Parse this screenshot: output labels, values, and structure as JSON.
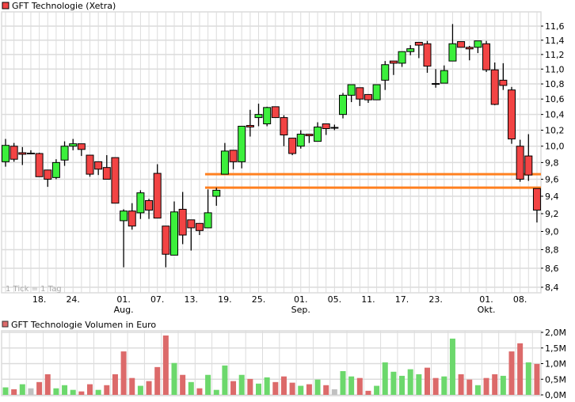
{
  "chart_data": [
    {
      "type": "candlestick",
      "title": "GFT Technologie (Xetra)",
      "note": "1 Tick = 1 Tag",
      "y_scale": "log",
      "ylim": [
        8.4,
        11.6
      ],
      "grid": true,
      "legend_placement": "top-left",
      "y_tick_labels": [
        "8,4",
        "8,6",
        "8,8",
        "9,0",
        "9,2",
        "9,4",
        "9,6",
        "9,8",
        "10,0",
        "10,2",
        "10,4",
        "10,6",
        "10,8",
        "11,0",
        "11,2",
        "11,4",
        "11,6"
      ],
      "y_tick_values": [
        8.4,
        8.6,
        8.8,
        9.0,
        9.2,
        9.4,
        9.6,
        9.8,
        10.0,
        10.2,
        10.4,
        10.6,
        10.8,
        11.0,
        11.2,
        11.4,
        11.6
      ],
      "x_ticks": [
        {
          "index": 4,
          "label": "18.",
          "sub": ""
        },
        {
          "index": 8,
          "label": "24.",
          "sub": ""
        },
        {
          "index": 14,
          "label": "01.",
          "sub": "Aug."
        },
        {
          "index": 18,
          "label": "07.",
          "sub": ""
        },
        {
          "index": 22,
          "label": "13.",
          "sub": ""
        },
        {
          "index": 26,
          "label": "19.",
          "sub": ""
        },
        {
          "index": 30,
          "label": "25.",
          "sub": ""
        },
        {
          "index": 35,
          "label": "01.",
          "sub": "Sep."
        },
        {
          "index": 39,
          "label": "05.",
          "sub": ""
        },
        {
          "index": 43,
          "label": "11.",
          "sub": ""
        },
        {
          "index": 47,
          "label": "17.",
          "sub": ""
        },
        {
          "index": 51,
          "label": "23.",
          "sub": ""
        },
        {
          "index": 57,
          "label": "01.",
          "sub": "Okt."
        },
        {
          "index": 61,
          "label": "08.",
          "sub": ""
        }
      ],
      "ohlc": [
        [
          9.81,
          10.09,
          9.75,
          10.01
        ],
        [
          10.0,
          10.04,
          9.81,
          9.84
        ],
        [
          9.92,
          9.99,
          9.77,
          9.91
        ],
        [
          9.91,
          9.95,
          9.9,
          9.91
        ],
        [
          9.91,
          9.92,
          9.63,
          9.63
        ],
        [
          9.71,
          9.71,
          9.51,
          9.6
        ],
        [
          9.62,
          9.84,
          9.6,
          9.8
        ],
        [
          9.83,
          10.06,
          9.76,
          10.0
        ],
        [
          10.0,
          10.09,
          9.95,
          10.03
        ],
        [
          10.03,
          10.03,
          9.88,
          9.96
        ],
        [
          9.89,
          9.89,
          9.63,
          9.66
        ],
        [
          9.81,
          9.81,
          9.65,
          9.72
        ],
        [
          9.74,
          9.89,
          9.6,
          9.6
        ],
        [
          9.86,
          9.86,
          9.32,
          9.32
        ],
        [
          9.12,
          9.25,
          8.61,
          9.23
        ],
        [
          9.23,
          9.32,
          9.02,
          9.06
        ],
        [
          9.21,
          9.47,
          9.14,
          9.44
        ],
        [
          9.35,
          9.37,
          9.14,
          9.24
        ],
        [
          9.67,
          9.78,
          9.15,
          9.15
        ],
        [
          9.06,
          9.06,
          8.61,
          8.75
        ],
        [
          8.74,
          9.34,
          8.74,
          9.22
        ],
        [
          9.25,
          9.45,
          8.86,
          8.96
        ],
        [
          9.13,
          9.13,
          8.79,
          9.04
        ],
        [
          9.09,
          9.09,
          8.96,
          9.01
        ],
        [
          9.04,
          9.48,
          9.04,
          9.21
        ],
        [
          9.4,
          9.5,
          9.29,
          9.47
        ],
        [
          9.66,
          10.04,
          9.66,
          9.94
        ],
        [
          9.95,
          9.95,
          9.72,
          9.81
        ],
        [
          9.81,
          10.25,
          9.73,
          10.25
        ],
        [
          10.26,
          10.46,
          10.12,
          10.24
        ],
        [
          10.36,
          10.54,
          10.25,
          10.4
        ],
        [
          10.28,
          10.5,
          10.25,
          10.49
        ],
        [
          10.5,
          10.5,
          10.36,
          10.36
        ],
        [
          10.36,
          10.39,
          10.0,
          10.14
        ],
        [
          10.1,
          10.1,
          9.89,
          9.91
        ],
        [
          10.0,
          10.2,
          9.97,
          10.15
        ],
        [
          10.15,
          10.15,
          10.04,
          10.13
        ],
        [
          10.06,
          10.3,
          10.06,
          10.24
        ],
        [
          10.28,
          10.28,
          10.14,
          10.22
        ],
        [
          10.23,
          10.27,
          10.2,
          10.23
        ],
        [
          10.4,
          10.68,
          10.35,
          10.65
        ],
        [
          10.65,
          10.79,
          10.56,
          10.79
        ],
        [
          10.75,
          10.75,
          10.51,
          10.6
        ],
        [
          10.66,
          10.66,
          10.55,
          10.59
        ],
        [
          10.59,
          10.79,
          10.59,
          10.79
        ],
        [
          10.85,
          11.11,
          10.72,
          11.06
        ],
        [
          11.11,
          11.11,
          10.92,
          11.08
        ],
        [
          11.08,
          11.24,
          11.03,
          11.24
        ],
        [
          11.24,
          11.33,
          11.19,
          11.28
        ],
        [
          11.37,
          11.37,
          11.15,
          11.33
        ],
        [
          11.35,
          11.39,
          10.95,
          11.04
        ],
        [
          10.8,
          11.0,
          10.75,
          10.8
        ],
        [
          10.81,
          11.05,
          10.81,
          10.98
        ],
        [
          11.11,
          11.63,
          11.11,
          11.35
        ],
        [
          11.38,
          11.38,
          11.3,
          11.3
        ],
        [
          11.3,
          11.32,
          11.12,
          11.28
        ],
        [
          11.3,
          11.39,
          11.22,
          11.39
        ],
        [
          11.35,
          11.39,
          10.96,
          10.99
        ],
        [
          10.99,
          11.09,
          10.52,
          10.53
        ],
        [
          10.85,
          11.08,
          10.72,
          10.78
        ],
        [
          10.72,
          10.76,
          10.03,
          10.09
        ],
        [
          10.0,
          10.08,
          9.57,
          9.6
        ],
        [
          9.88,
          10.15,
          9.58,
          9.65
        ],
        [
          9.49,
          9.49,
          9.1,
          9.24
        ]
      ],
      "horizontal_lines": [
        {
          "value": 9.66,
          "from_index": 23,
          "color": "#ff8020"
        },
        {
          "value": 9.5,
          "from_index": 23,
          "color": "#ff8020"
        }
      ],
      "colors": {
        "up": "#3cf03c",
        "down": "#f24444",
        "grid": "#dcdcdc"
      }
    },
    {
      "type": "bar",
      "title": "GFT Technologie Volumen in Euro",
      "ylim": [
        0,
        2.0
      ],
      "unit": "M",
      "grid": true,
      "y_tick_labels": [
        "0,0M",
        "0,5M",
        "1,0M",
        "1,5M",
        "2,0M"
      ],
      "y_tick_values": [
        0,
        0.5,
        1.0,
        1.5,
        2.0
      ],
      "values": [
        0.24,
        0.18,
        0.34,
        0.21,
        0.41,
        0.66,
        0.21,
        0.31,
        0.16,
        0.11,
        0.34,
        0.16,
        0.31,
        0.66,
        1.39,
        0.54,
        0.29,
        0.44,
        0.89,
        1.9,
        1.02,
        0.64,
        0.41,
        0.21,
        0.64,
        0.16,
        0.94,
        0.44,
        0.64,
        0.51,
        0.36,
        0.56,
        0.41,
        0.59,
        0.39,
        0.29,
        0.34,
        0.49,
        0.31,
        0.18,
        0.76,
        0.59,
        0.54,
        0.13,
        0.29,
        1.04,
        0.74,
        0.61,
        0.82,
        0.66,
        0.87,
        0.54,
        0.59,
        1.8,
        0.66,
        0.49,
        0.31,
        0.54,
        0.66,
        0.61,
        1.39,
        1.65,
        1.04,
        0.99
      ],
      "bar_colors": [
        "g",
        "r",
        "g",
        "n",
        "r",
        "r",
        "g",
        "g",
        "g",
        "r",
        "r",
        "g",
        "r",
        "r",
        "r",
        "r",
        "g",
        "r",
        "r",
        "r",
        "g",
        "r",
        "g",
        "r",
        "g",
        "g",
        "g",
        "r",
        "g",
        "r",
        "g",
        "g",
        "r",
        "r",
        "r",
        "g",
        "r",
        "g",
        "r",
        "n",
        "g",
        "g",
        "r",
        "r",
        "g",
        "g",
        "g",
        "g",
        "g",
        "g",
        "r",
        "r",
        "g",
        "g",
        "r",
        "r",
        "g",
        "r",
        "r",
        "g",
        "r",
        "r",
        "g",
        "r"
      ],
      "colors": {
        "g": "#6cd86c",
        "r": "#dc6a6a",
        "n": "#c0c0c0",
        "legend": "#dc6a6a"
      }
    }
  ]
}
